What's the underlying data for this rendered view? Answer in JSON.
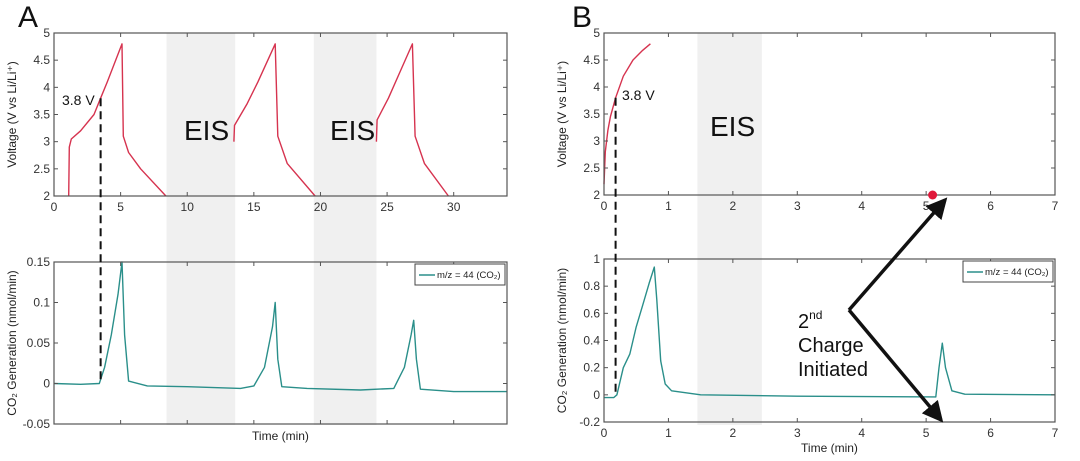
{
  "chart_data": [
    {
      "panel": "A",
      "type": "line",
      "ylabel": "Voltage (V vs Li/Li⁺)",
      "xlim": [
        0,
        34
      ],
      "ylim": [
        2,
        5
      ],
      "xticks": [
        0,
        5,
        10,
        15,
        20,
        25,
        30
      ],
      "yticks": [
        2,
        2.5,
        3,
        3.5,
        4,
        4.5,
        5
      ],
      "color": "#d6334f",
      "shaded_regions": [
        {
          "label": "EIS",
          "x": [
            8.45,
            13.6
          ]
        },
        {
          "label": "EIS",
          "x": [
            19.5,
            24.2
          ]
        }
      ],
      "marker_line": {
        "x": 3.5,
        "label": "3.8 V"
      },
      "series": [
        {
          "x": [
            1.1,
            1.15,
            1.3,
            2,
            3,
            3.5,
            4,
            5.1,
            5.2,
            5.6,
            6.5,
            8.4
          ],
          "y": [
            2,
            2.9,
            3.05,
            3.2,
            3.5,
            3.8,
            4.1,
            4.8,
            3.1,
            2.8,
            2.5,
            2
          ]
        },
        {
          "x": [
            13.5,
            13.55,
            14.5,
            15.3,
            16.6,
            16.8,
            17.5,
            19.6
          ],
          "y": [
            3.0,
            3.3,
            3.7,
            4.1,
            4.8,
            3.1,
            2.6,
            2
          ]
        },
        {
          "x": [
            24.2,
            24.25,
            25.1,
            26,
            26.9,
            27.1,
            27.8,
            29.6
          ],
          "y": [
            3.0,
            3.4,
            3.8,
            4.3,
            4.8,
            3.1,
            2.6,
            2
          ]
        }
      ]
    },
    {
      "panel": "A",
      "type": "line",
      "xlabel": "Time (min)",
      "ylabel": "CO₂ Generation (nmol/min)",
      "xlim": [
        0,
        34
      ],
      "ylim": [
        -0.05,
        0.15
      ],
      "yticks": [
        -0.05,
        0,
        0.05,
        0.1,
        0.15
      ],
      "color": "#2a8f8a",
      "legend": "m/z = 44 (CO₂)",
      "legend_position": "top-right",
      "series": [
        {
          "name": "m/z = 44 (CO₂)",
          "x": [
            0,
            2,
            3.4,
            3.8,
            4.3,
            4.8,
            5.1,
            5.3,
            5.6,
            7,
            10,
            14,
            15,
            15.8,
            16.4,
            16.6,
            16.8,
            17.1,
            19,
            23,
            25.5,
            26.3,
            26.8,
            27,
            27.2,
            27.5,
            30,
            34
          ],
          "y": [
            0,
            -0.001,
            0,
            0.02,
            0.06,
            0.11,
            0.15,
            0.06,
            0.003,
            -0.003,
            -0.004,
            -0.006,
            -0.003,
            0.02,
            0.07,
            0.1,
            0.03,
            -0.004,
            -0.006,
            -0.008,
            -0.006,
            0.02,
            0.06,
            0.078,
            0.03,
            -0.007,
            -0.01,
            -0.01
          ]
        }
      ]
    },
    {
      "panel": "B",
      "type": "line",
      "ylabel": "Voltage (V vs Li/Li⁺)",
      "xlim": [
        0,
        7
      ],
      "ylim": [
        2,
        5
      ],
      "xticks": [
        0,
        1,
        2,
        3,
        4,
        5,
        6,
        7
      ],
      "yticks": [
        2,
        2.5,
        3,
        3.5,
        4,
        4.5,
        5
      ],
      "color": "#d6334f",
      "shaded_regions": [
        {
          "label": "EIS",
          "x": [
            1.45,
            2.45
          ]
        }
      ],
      "marker_line": {
        "x": 0.18,
        "label": "3.8 V"
      },
      "points": [
        {
          "x": 5.1,
          "y": 2
        }
      ],
      "series": [
        {
          "x": [
            0,
            0.02,
            0.06,
            0.1,
            0.18,
            0.3,
            0.45,
            0.6,
            0.72
          ],
          "y": [
            2.2,
            2.8,
            3.2,
            3.45,
            3.8,
            4.2,
            4.5,
            4.68,
            4.8
          ]
        }
      ]
    },
    {
      "panel": "B",
      "type": "line",
      "xlabel": "Time (min)",
      "ylabel": "CO₂ Generation (nmol/min)",
      "xlim": [
        0,
        7
      ],
      "ylim": [
        -0.2,
        1
      ],
      "xticks": [
        0,
        1,
        2,
        3,
        4,
        5,
        6,
        7
      ],
      "yticks": [
        -0.2,
        0,
        0.2,
        0.4,
        0.6,
        0.8,
        1
      ],
      "color": "#2a8f8a",
      "legend": "m/z = 44 (CO₂)",
      "legend_position": "top-right",
      "series": [
        {
          "name": "m/z = 44 (CO₂)",
          "x": [
            0,
            0.15,
            0.2,
            0.3,
            0.4,
            0.5,
            0.6,
            0.7,
            0.78,
            0.82,
            0.88,
            0.95,
            1.05,
            1.5,
            3,
            5.15,
            5.2,
            5.25,
            5.3,
            5.4,
            5.6,
            7
          ],
          "y": [
            -0.02,
            -0.02,
            0,
            0.2,
            0.3,
            0.5,
            0.66,
            0.82,
            0.94,
            0.7,
            0.25,
            0.08,
            0.03,
            0,
            -0.01,
            -0.015,
            0.2,
            0.38,
            0.2,
            0.03,
            0.005,
            0
          ]
        }
      ]
    }
  ],
  "labels": {
    "panel_a": "A",
    "panel_b": "B",
    "eis": "EIS",
    "voltage_marker": "3.8 V",
    "annotation_ordinal": "2",
    "annotation_ordinal_suffix": "nd",
    "annotation_line2": "Charge",
    "annotation_line3": "Initiated"
  }
}
